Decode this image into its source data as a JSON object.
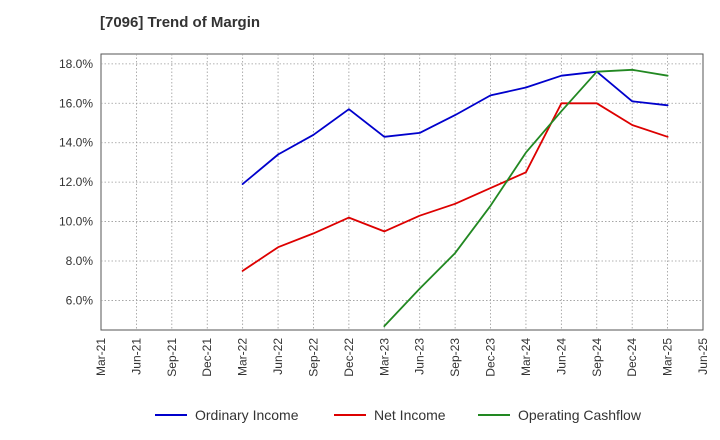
{
  "chart_data": {
    "type": "line",
    "title": "[7096]  Trend of Margin",
    "xlabel": "",
    "ylabel": "",
    "categories": [
      "Mar-21",
      "Jun-21",
      "Sep-21",
      "Dec-21",
      "Mar-22",
      "Jun-22",
      "Sep-22",
      "Dec-22",
      "Mar-23",
      "Jun-23",
      "Sep-23",
      "Dec-23",
      "Mar-24",
      "Jun-24",
      "Sep-24",
      "Dec-24",
      "Mar-25",
      "Jun-25"
    ],
    "ylim": [
      4.5,
      18.5
    ],
    "yticks": [
      6.0,
      8.0,
      10.0,
      12.0,
      14.0,
      16.0,
      18.0
    ],
    "ytick_labels": [
      "6.0%",
      "8.0%",
      "10.0%",
      "12.0%",
      "14.0%",
      "16.0%",
      "18.0%"
    ],
    "grid": true,
    "legend_position": "bottom",
    "series": [
      {
        "name": "Ordinary Income",
        "color": "#0000cc",
        "values": [
          null,
          null,
          null,
          null,
          11.9,
          13.4,
          14.4,
          15.7,
          14.3,
          14.5,
          15.4,
          16.4,
          16.8,
          17.4,
          17.6,
          16.1,
          15.9,
          null
        ]
      },
      {
        "name": "Net Income",
        "color": "#dd0000",
        "values": [
          null,
          null,
          null,
          null,
          7.5,
          8.7,
          9.4,
          10.2,
          9.5,
          10.3,
          10.9,
          11.7,
          12.5,
          16.0,
          16.0,
          14.9,
          14.3,
          null
        ]
      },
      {
        "name": "Operating Cashflow",
        "color": "#228822",
        "values": [
          null,
          null,
          null,
          null,
          null,
          null,
          null,
          null,
          4.7,
          6.6,
          8.4,
          10.8,
          13.5,
          15.6,
          17.6,
          17.7,
          17.4,
          null
        ]
      }
    ]
  }
}
